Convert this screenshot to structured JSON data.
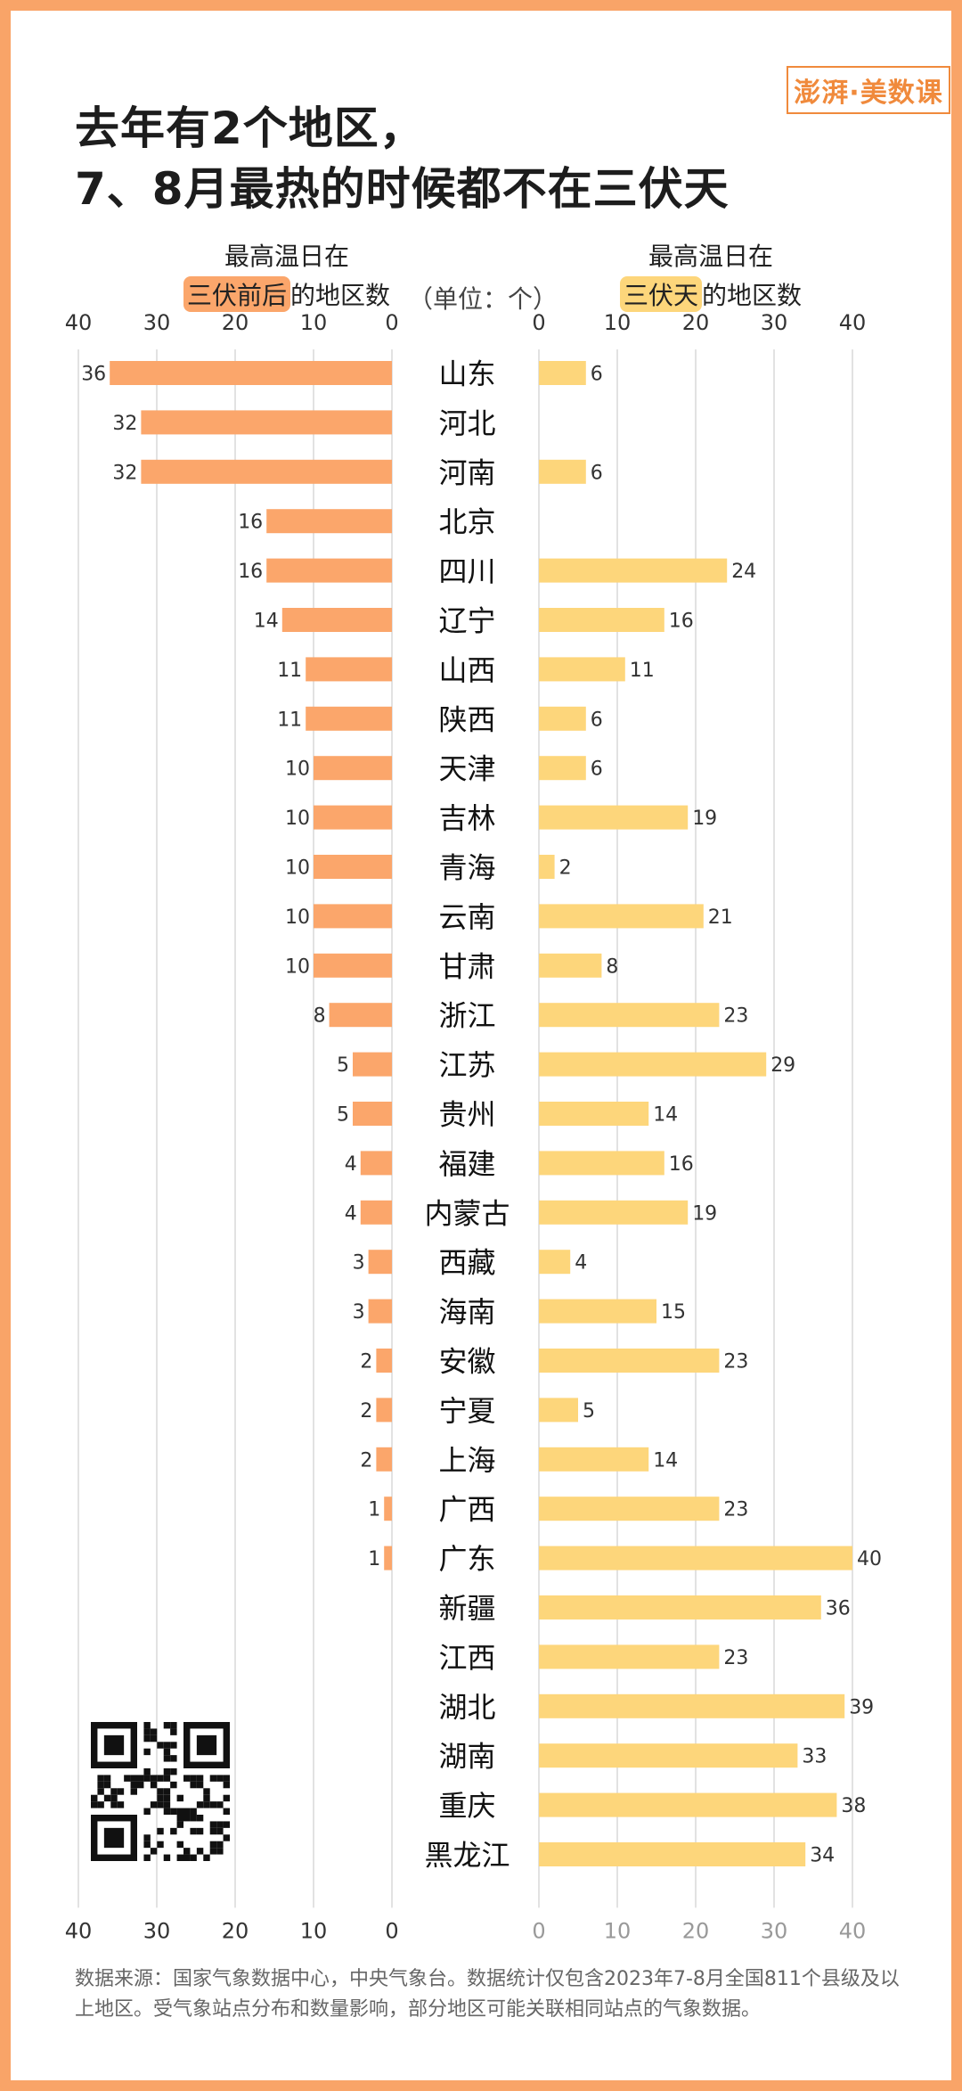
{
  "logo_text": "澎湃·美数课",
  "title": [
    "去年有2个地区，",
    "7、8月最热的时候都不在三伏天"
  ],
  "left_header": {
    "line1": "最高温日在",
    "highlight": "三伏前后",
    "rest": "的地区数"
  },
  "right_header": {
    "line1": "最高温日在",
    "highlight": "三伏天",
    "rest": "的地区数"
  },
  "unit_text": "（单位：个）",
  "source": "数据来源：国家气象数据中心，中央气象台。数据统计仅包含2023年7-8月全国811个县级及以上地区。受气象站点分布和数量影响，部分地区可能关联相同站点的气象数据。",
  "colors": {
    "left_bar": "#fba66b",
    "right_bar": "#fdd67b",
    "left_pill": "#fba66b",
    "right_pill": "#fdd67b",
    "border": "#f9a468"
  },
  "chart_data": {
    "type": "bar",
    "orientation": "horizontal",
    "categories": [
      "山东",
      "河北",
      "河南",
      "北京",
      "四川",
      "辽宁",
      "山西",
      "陕西",
      "天津",
      "吉林",
      "青海",
      "云南",
      "甘肃",
      "浙江",
      "江苏",
      "贵州",
      "福建",
      "内蒙古",
      "西藏",
      "海南",
      "安徽",
      "宁夏",
      "上海",
      "广西",
      "广东",
      "新疆",
      "江西",
      "湖北",
      "湖南",
      "重庆",
      "黑龙江"
    ],
    "series": [
      {
        "name": "最高温日在三伏前后的地区数",
        "values": [
          36,
          32,
          32,
          16,
          16,
          14,
          11,
          11,
          10,
          10,
          10,
          10,
          10,
          8,
          5,
          5,
          4,
          4,
          3,
          3,
          2,
          2,
          2,
          1,
          1,
          0,
          0,
          0,
          0,
          0,
          0
        ]
      },
      {
        "name": "最高温日在三伏天的地区数",
        "values": [
          6,
          0,
          6,
          0,
          24,
          16,
          11,
          6,
          6,
          19,
          2,
          21,
          8,
          23,
          29,
          14,
          16,
          19,
          4,
          15,
          23,
          5,
          14,
          23,
          40,
          36,
          23,
          39,
          33,
          38,
          34
        ]
      }
    ],
    "xlim": [
      0,
      40
    ],
    "ticks": [
      0,
      10,
      20,
      30,
      40
    ],
    "grid": true
  }
}
